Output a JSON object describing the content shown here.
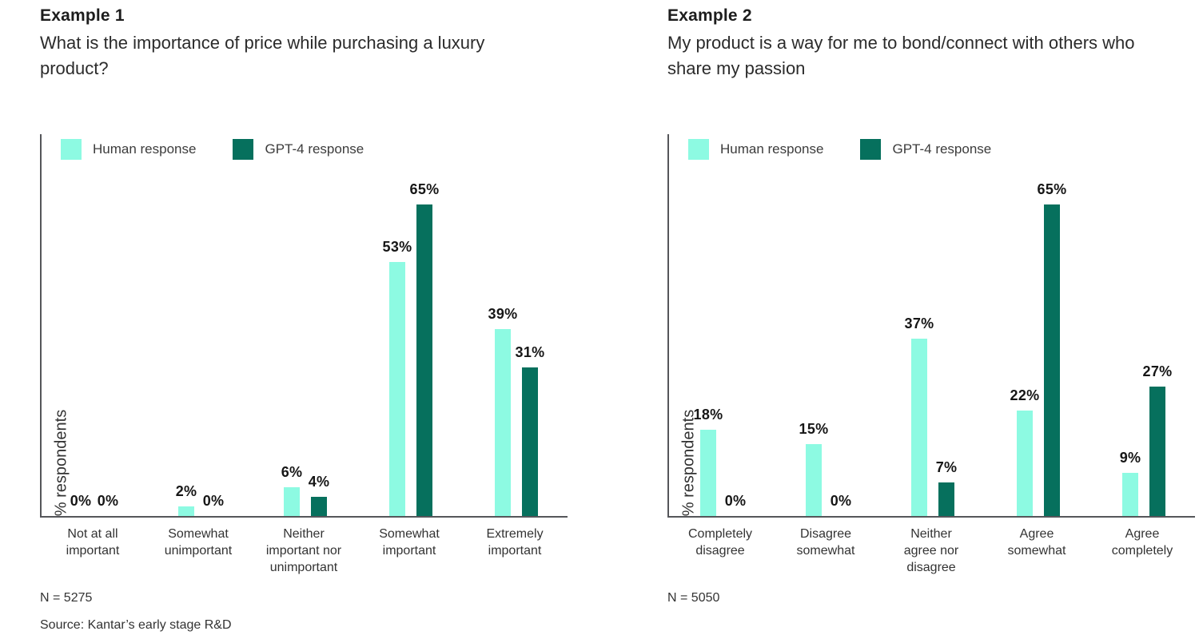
{
  "colors": {
    "human": "#8DFAE2",
    "gpt4": "#06705D",
    "axis": "#55565a",
    "title_text": "#1d1d1d",
    "label_text": "#333333"
  },
  "source": "Source: Kantar’s early stage R&D",
  "chart_data": [
    {
      "type": "bar",
      "title": "Example 1",
      "subtitle": "What is the importance of price while purchasing a luxury product?",
      "ylabel": "% respondents",
      "xlabel": "",
      "ylim": [
        0,
        80
      ],
      "grid": false,
      "legend_position": "top-left-inside",
      "value_suffix": "%",
      "categories": [
        "Not at all\nimportant",
        "Somewhat\nunimportant",
        "Neither\nimportant nor\nunimportant",
        "Somewhat\nimportant",
        "Extremely\nimportant"
      ],
      "series": [
        {
          "name": "Human response",
          "values": [
            0,
            2,
            6,
            53,
            39
          ]
        },
        {
          "name": "GPT-4 response",
          "values": [
            0,
            0,
            4,
            65,
            31
          ]
        }
      ],
      "n_label": "N = 5275"
    },
    {
      "type": "bar",
      "title": "Example 2",
      "subtitle": "My product is a way for me to bond/connect with others who share my passion",
      "ylabel": "% respondents",
      "xlabel": "",
      "ylim": [
        0,
        80
      ],
      "grid": false,
      "legend_position": "top-left-inside",
      "value_suffix": "%",
      "categories": [
        "Completely\ndisagree",
        "Disagree\nsomewhat",
        "Neither\nagree nor\ndisagree",
        "Agree\nsomewhat",
        "Agree\ncompletely"
      ],
      "series": [
        {
          "name": "Human response",
          "values": [
            18,
            15,
            37,
            22,
            9
          ]
        },
        {
          "name": "GPT-4 response",
          "values": [
            0,
            0,
            7,
            65,
            27
          ]
        }
      ],
      "n_label": "N = 5050"
    }
  ]
}
